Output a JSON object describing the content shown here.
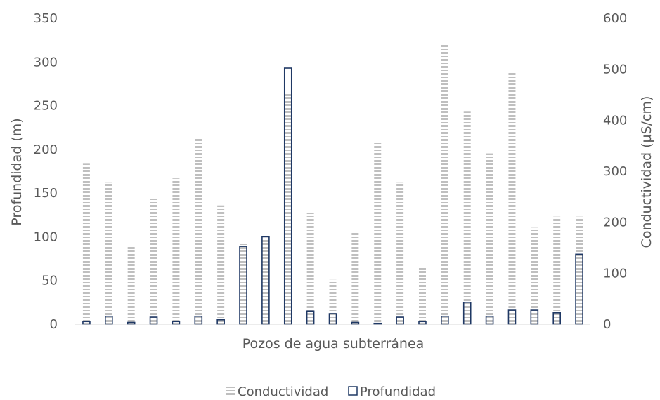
{
  "chart_data": {
    "type": "bar",
    "xlabel": "Pozos de agua subterránea",
    "ylabel_left": "Profundidad (m)",
    "ylabel_right": "Conductividad (µS/cm)",
    "ylim_left": [
      0,
      350
    ],
    "ylim_right": [
      0,
      600
    ],
    "yticks_left": [
      "0",
      "50",
      "100",
      "150",
      "200",
      "250",
      "300",
      "350"
    ],
    "yticks_right": [
      "0",
      "100",
      "200",
      "300",
      "400",
      "500",
      "600"
    ],
    "grid": false,
    "legend_position": "bottom",
    "series": [
      {
        "name": "Conductividad",
        "axis": "right",
        "color": "#bfbfbf",
        "values": [
          316,
          277,
          154,
          245,
          286,
          365,
          233,
          157,
          166,
          455,
          218,
          87,
          180,
          356,
          277,
          113,
          548,
          418,
          335,
          494,
          189,
          211,
          211
        ]
      },
      {
        "name": "Profundidad",
        "axis": "left",
        "color": "#1f3864",
        "values": [
          3,
          9,
          2,
          8,
          3,
          9,
          5,
          89,
          100,
          293,
          15,
          12,
          2,
          1,
          8,
          3,
          9,
          25,
          9,
          16,
          16,
          13,
          80
        ]
      }
    ]
  }
}
